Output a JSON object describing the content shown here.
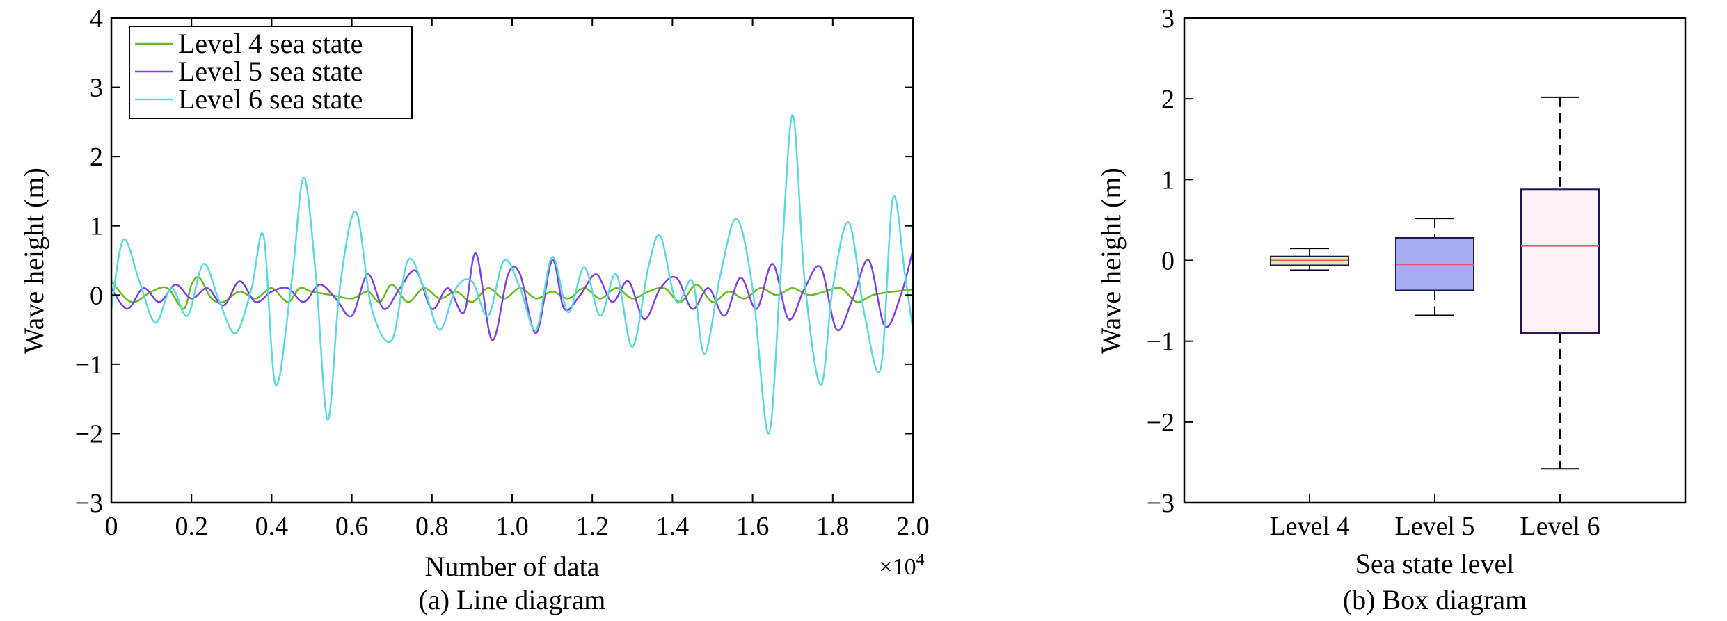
{
  "chart_data": [
    {
      "type": "line",
      "caption": "(a) Line diagram",
      "xlabel": "Number of data",
      "ylabel": "Wave height (m)",
      "x_multiplier": "×10",
      "x_multiplier_exp": "4",
      "xlim": [
        0,
        2.0
      ],
      "ylim": [
        -3,
        4
      ],
      "xticks": [
        "0",
        "0.2",
        "0.4",
        "0.6",
        "0.8",
        "1.0",
        "1.2",
        "1.4",
        "1.6",
        "1.8",
        "2.0"
      ],
      "yticks": [
        "−3",
        "−2",
        "−1",
        "0",
        "1",
        "2",
        "3",
        "4"
      ],
      "legend_position": "top-left",
      "x_units": "×10^4 data points",
      "series": [
        {
          "name": "Level 4 sea state",
          "color": "#66bb1f",
          "x": [
            0,
            0.05,
            0.1,
            0.14,
            0.18,
            0.2,
            0.22,
            0.25,
            0.28,
            0.32,
            0.36,
            0.4,
            0.44,
            0.47,
            0.5,
            0.55,
            0.6,
            0.64,
            0.67,
            0.7,
            0.74,
            0.78,
            0.82,
            0.86,
            0.9,
            0.94,
            0.98,
            1.02,
            1.06,
            1.1,
            1.14,
            1.18,
            1.22,
            1.26,
            1.3,
            1.34,
            1.38,
            1.42,
            1.46,
            1.5,
            1.54,
            1.58,
            1.62,
            1.66,
            1.7,
            1.74,
            1.78,
            1.82,
            1.86,
            1.9,
            1.95,
            2.0
          ],
          "y": [
            0.2,
            -0.1,
            0.05,
            0.1,
            -0.2,
            0.15,
            0.25,
            -0.05,
            -0.1,
            0.05,
            -0.05,
            0.1,
            -0.1,
            0.1,
            0.05,
            0.0,
            -0.05,
            0.05,
            -0.1,
            0.15,
            -0.1,
            0.1,
            -0.05,
            0.05,
            -0.1,
            0.1,
            -0.05,
            0.1,
            -0.05,
            0.05,
            -0.05,
            0.1,
            -0.05,
            0.1,
            -0.05,
            0.05,
            0.1,
            -0.1,
            0.15,
            -0.1,
            0.05,
            -0.05,
            0.1,
            0.0,
            0.1,
            0.0,
            0.05,
            0.1,
            -0.1,
            0.0,
            0.05,
            0.08
          ]
        },
        {
          "name": "Level 5 sea state",
          "color": "#8040e0",
          "x": [
            0,
            0.04,
            0.08,
            0.12,
            0.16,
            0.2,
            0.24,
            0.28,
            0.32,
            0.36,
            0.4,
            0.44,
            0.48,
            0.52,
            0.56,
            0.6,
            0.64,
            0.68,
            0.72,
            0.76,
            0.8,
            0.84,
            0.88,
            0.91,
            0.95,
            0.99,
            1.02,
            1.06,
            1.1,
            1.13,
            1.17,
            1.21,
            1.25,
            1.29,
            1.33,
            1.37,
            1.41,
            1.45,
            1.49,
            1.53,
            1.57,
            1.61,
            1.65,
            1.69,
            1.73,
            1.77,
            1.81,
            1.85,
            1.89,
            1.93,
            1.97,
            2.0
          ],
          "y": [
            0.1,
            -0.2,
            0.1,
            -0.1,
            0.15,
            -0.05,
            0.1,
            -0.15,
            0.2,
            -0.1,
            0.05,
            0.1,
            -0.1,
            0.15,
            -0.05,
            -0.3,
            0.3,
            -0.2,
            0.1,
            0.35,
            -0.2,
            0.1,
            -0.25,
            0.6,
            -0.65,
            0.3,
            0.3,
            -0.55,
            0.5,
            -0.2,
            0.0,
            0.3,
            -0.1,
            0.2,
            -0.35,
            0.1,
            0.25,
            -0.2,
            0.1,
            -0.3,
            0.25,
            -0.2,
            0.45,
            -0.35,
            0.1,
            0.4,
            -0.5,
            -0.05,
            0.5,
            -0.45,
            0.0,
            0.65
          ]
        },
        {
          "name": "Level 6 sea state",
          "color": "#5bd8dd",
          "x": [
            0,
            0.03,
            0.07,
            0.11,
            0.15,
            0.19,
            0.23,
            0.27,
            0.31,
            0.35,
            0.38,
            0.41,
            0.45,
            0.48,
            0.51,
            0.54,
            0.57,
            0.61,
            0.65,
            0.7,
            0.74,
            0.78,
            0.82,
            0.86,
            0.9,
            0.94,
            0.98,
            1.02,
            1.06,
            1.1,
            1.14,
            1.18,
            1.22,
            1.26,
            1.3,
            1.34,
            1.37,
            1.41,
            1.45,
            1.48,
            1.52,
            1.56,
            1.6,
            1.64,
            1.67,
            1.7,
            1.73,
            1.77,
            1.8,
            1.84,
            1.88,
            1.92,
            1.95,
            1.98,
            2.0
          ],
          "y": [
            -0.2,
            0.8,
            0.2,
            -0.4,
            0.1,
            -0.3,
            0.45,
            -0.1,
            -0.55,
            0.1,
            0.85,
            -1.3,
            0.2,
            1.7,
            0.3,
            -1.8,
            0.1,
            1.2,
            -0.2,
            -0.65,
            0.5,
            0.1,
            -0.5,
            0.1,
            0.2,
            -0.3,
            0.5,
            0.1,
            -0.5,
            0.55,
            -0.25,
            0.4,
            -0.3,
            0.3,
            -0.75,
            0.4,
            0.85,
            -0.1,
            0.2,
            -0.85,
            0.3,
            1.1,
            0.1,
            -2.0,
            0.3,
            2.6,
            0.2,
            -1.3,
            0.1,
            1.05,
            -0.3,
            -1.05,
            1.4,
            0.3,
            -0.5
          ]
        }
      ]
    },
    {
      "type": "box",
      "caption": "(b) Box diagram",
      "xlabel": "Sea state level",
      "ylabel": "Wave height (m)",
      "ylim": [
        -3,
        3
      ],
      "yticks": [
        "−3",
        "−2",
        "−1",
        "0",
        "1",
        "2",
        "3"
      ],
      "categories": [
        "Level 4",
        "Level 5",
        "Level 6"
      ],
      "boxes": [
        {
          "min": -0.12,
          "q1": -0.06,
          "median": 0.0,
          "q3": 0.05,
          "max": 0.15,
          "fill": "#dff0a8",
          "median_color": "#e8506a"
        },
        {
          "min": -0.68,
          "q1": -0.37,
          "median": -0.05,
          "q3": 0.28,
          "max": 0.52,
          "fill": "#a8acf2",
          "median_color": "#e8506a"
        },
        {
          "min": -2.58,
          "q1": -0.9,
          "median": 0.18,
          "q3": 0.88,
          "max": 2.02,
          "fill": "#fdf0f8",
          "median_color": "#e8506a"
        }
      ]
    }
  ]
}
